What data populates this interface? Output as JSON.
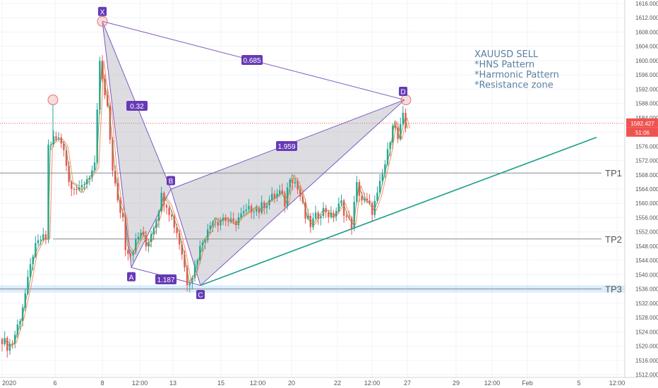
{
  "chart_data": {
    "type": "candlestick",
    "symbol": "XAUUSD",
    "y_axis": {
      "range": [
        1512,
        1616
      ],
      "ticks": [
        "1616.000",
        "1612.000",
        "1608.000",
        "1604.000",
        "1600.000",
        "1596.000",
        "1592.000",
        "1588.000",
        "1584.000",
        "1580.000",
        "1576.000",
        "1572.000",
        "1568.000",
        "1564.000",
        "1560.000",
        "1556.000",
        "1552.000",
        "1548.000",
        "1544.000",
        "1540.000",
        "1536.000",
        "1532.000",
        "1528.000",
        "1524.000",
        "1520.000",
        "1516.000",
        "1512.000"
      ]
    },
    "x_axis": {
      "ticks": [
        "2020",
        "6",
        "8",
        "12:00",
        "13",
        "15",
        "12:00",
        "20",
        "22",
        "12:00",
        "27",
        "29",
        "12:00",
        "Feb",
        "5",
        "12:00"
      ]
    },
    "price_label": "1582.427",
    "countdown_label": "51:06",
    "last_price": 1582.427,
    "price_path": [
      [
        0,
        1522
      ],
      [
        2,
        1520
      ],
      [
        4,
        1521
      ],
      [
        7,
        1528
      ],
      [
        10,
        1538
      ],
      [
        12,
        1546
      ],
      [
        15,
        1550
      ],
      [
        17,
        1550
      ],
      [
        18,
        1576
      ],
      [
        20,
        1578
      ],
      [
        22,
        1578
      ],
      [
        24,
        1576
      ],
      [
        26,
        1566
      ],
      [
        28,
        1565
      ],
      [
        30,
        1563
      ],
      [
        32,
        1566
      ],
      [
        34,
        1568
      ],
      [
        36,
        1570
      ],
      [
        38,
        1600
      ],
      [
        39,
        1594
      ],
      [
        41,
        1586
      ],
      [
        43,
        1570
      ],
      [
        45,
        1560
      ],
      [
        47,
        1556
      ],
      [
        48,
        1548
      ],
      [
        50,
        1546
      ],
      [
        52,
        1549
      ],
      [
        54,
        1552
      ],
      [
        56,
        1548
      ],
      [
        58,
        1552
      ],
      [
        60,
        1556
      ],
      [
        62,
        1562
      ],
      [
        64,
        1560
      ],
      [
        66,
        1556
      ],
      [
        68,
        1552
      ],
      [
        70,
        1546
      ],
      [
        72,
        1538
      ],
      [
        74,
        1540
      ],
      [
        76,
        1545
      ],
      [
        78,
        1550
      ],
      [
        80,
        1552
      ],
      [
        82,
        1556
      ],
      [
        84,
        1555
      ],
      [
        86,
        1556
      ],
      [
        88,
        1555
      ],
      [
        90,
        1554
      ],
      [
        92,
        1556
      ],
      [
        94,
        1557
      ],
      [
        96,
        1558
      ],
      [
        98,
        1559
      ],
      [
        100,
        1558
      ],
      [
        102,
        1560
      ],
      [
        104,
        1561
      ],
      [
        106,
        1562
      ],
      [
        108,
        1563
      ],
      [
        110,
        1560
      ],
      [
        112,
        1568
      ],
      [
        114,
        1566
      ],
      [
        116,
        1562
      ],
      [
        118,
        1556
      ],
      [
        120,
        1554
      ],
      [
        122,
        1556
      ],
      [
        124,
        1558
      ],
      [
        126,
        1558
      ],
      [
        128,
        1556
      ],
      [
        130,
        1558
      ],
      [
        132,
        1560
      ],
      [
        134,
        1556
      ],
      [
        136,
        1554
      ],
      [
        138,
        1565
      ],
      [
        140,
        1561
      ],
      [
        142,
        1560
      ],
      [
        144,
        1558
      ],
      [
        146,
        1562
      ],
      [
        148,
        1568
      ],
      [
        150,
        1574
      ],
      [
        152,
        1583
      ],
      [
        154,
        1578
      ],
      [
        156,
        1584
      ],
      [
        157,
        1581
      ]
    ],
    "harmonic_pattern": {
      "points": [
        {
          "label": "X",
          "price": 1611
        },
        {
          "label": "A",
          "price": 1542
        },
        {
          "label": "B",
          "price": 1564
        },
        {
          "label": "C",
          "price": 1537
        },
        {
          "label": "D",
          "price": 1589
        }
      ],
      "ratios": [
        "0.32",
        "1.187",
        "1.959",
        "0.685"
      ]
    },
    "horizontal_levels": [
      {
        "label": "TP1",
        "price": 1568.5
      },
      {
        "label": "TP2",
        "price": 1550
      },
      {
        "label": "TP3",
        "price": 1536
      }
    ],
    "resistance_zone": [
      1535,
      1537
    ],
    "trendline": {
      "from_price": 1537,
      "to_price": 1578.5
    },
    "markers": [
      1589,
      1611,
      1589
    ],
    "annotation_lines": [
      "XAUUSD SELL",
      "*HNS Pattern",
      "*Harmonic Pattern",
      "*Resistance zone"
    ],
    "colors": {
      "up_candle": "#26a69a",
      "down_candle": "#ef5350",
      "pattern_line": "#7e57c2",
      "pattern_fill": "#9e9ea8",
      "label_box": "#673ab7",
      "trendline": "#1d9e8a",
      "levels": "#888888",
      "price_line": "#ef5350",
      "zone": "#bbdefb",
      "annotation_text": "#5b7fa0"
    }
  }
}
